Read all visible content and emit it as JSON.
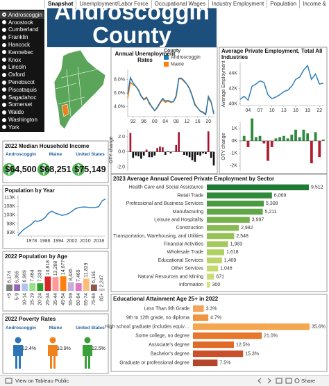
{
  "tabs": [
    "Snapshot",
    "Unemployment/Labor Force",
    "Occupational Wages",
    "Industry Employment",
    "Population",
    "Income &"
  ],
  "counties": [
    "Androscoggin",
    "Aroostook",
    "Cumberland",
    "Franklin",
    "Hancock",
    "Kennebec",
    "Knox",
    "Lincoln",
    "Oxford",
    "Penobscot",
    "Piscataquis",
    "Sagadahoc",
    "Somerset",
    "Waldo",
    "Washington",
    "York"
  ],
  "selected_county": 0,
  "banner_title": "Androscoggin County",
  "income": {
    "title": "2022 Median Household Income",
    "items": [
      {
        "name": "Androscoggin",
        "value": "$64,500"
      },
      {
        "name": "Maine",
        "value": "$68,251"
      },
      {
        "name": "United States",
        "value": "$75,149"
      }
    ]
  },
  "poverty": {
    "title": "2022 Poverty Rates",
    "items": [
      {
        "name": "Androscoggin",
        "value": "12.4%",
        "color": "#2e75b6"
      },
      {
        "name": "Maine",
        "value": "10.9%",
        "color": "#f0821e"
      },
      {
        "name": "United States",
        "value": "12.5%",
        "color": "#3aa03a"
      }
    ]
  },
  "footer": {
    "link": "View on Tableau Public",
    "share": "Share"
  },
  "chart_data": [
    {
      "type": "line",
      "title": "Annual Unemployment Rates",
      "legend_title": "County",
      "x": [
        1990,
        1991,
        1992,
        1993,
        1994,
        1995,
        1996,
        1997,
        1998,
        1999,
        2000,
        2001,
        2002,
        2003,
        2004,
        2005,
        2006,
        2007,
        2008,
        2009,
        2010,
        2011,
        2012,
        2013,
        2014,
        2015,
        2016,
        2017,
        2018,
        2019,
        2020,
        2021,
        2022
      ],
      "series": [
        {
          "name": "Androscoggin",
          "color": "#1f77b4",
          "values": [
            5.8,
            8.3,
            7.5,
            7.0,
            6.4,
            5.5,
            5.0,
            5.3,
            4.6,
            3.9,
            3.4,
            3.9,
            4.6,
            5.2,
            4.8,
            4.9,
            4.7,
            4.7,
            5.6,
            8.2,
            8.2,
            7.8,
            7.3,
            6.6,
            5.5,
            4.2,
            3.8,
            3.3,
            3.1,
            2.8,
            5.5,
            4.7,
            2.9
          ]
        },
        {
          "name": "Maine",
          "color": "#ff7f0e",
          "values": [
            5.2,
            7.6,
            7.2,
            7.0,
            6.5,
            5.6,
            5.1,
            5.4,
            4.4,
            4.0,
            3.4,
            3.8,
            4.5,
            5.0,
            4.6,
            4.8,
            4.6,
            4.7,
            5.4,
            8.1,
            8.1,
            7.7,
            7.3,
            6.7,
            5.6,
            4.4,
            3.8,
            3.3,
            3.2,
            2.9,
            5.2,
            4.6,
            3.1
          ]
        }
      ],
      "xlim": [
        1990,
        2022
      ],
      "xticks": [
        {
          "value": 1992,
          "label": "92"
        },
        {
          "value": 1996,
          "label": "96"
        },
        {
          "value": 2000,
          "label": "00"
        },
        {
          "value": 2004,
          "label": "04"
        },
        {
          "value": 2008,
          "label": "08"
        },
        {
          "value": 2012,
          "label": "12"
        },
        {
          "value": 2016,
          "label": "16"
        },
        {
          "value": 2020,
          "label": "20"
        }
      ],
      "ylim": [
        2.5,
        9.5
      ],
      "yticks": [
        {
          "value": 4,
          "label": "4.0%"
        },
        {
          "value": 6,
          "label": "6.0%"
        },
        {
          "value": 8,
          "label": "8.0%"
        }
      ],
      "grid": false
    },
    {
      "type": "bar",
      "ylabel": "OTY change",
      "x": [
        1991,
        1992,
        1993,
        1994,
        1995,
        1996,
        1997,
        1998,
        1999,
        2000,
        2001,
        2002,
        2003,
        2004,
        2005,
        2006,
        2007,
        2008,
        2009,
        2010,
        2011,
        2012,
        2013,
        2014,
        2015,
        2016,
        2017,
        2018,
        2019,
        2020,
        2021,
        2022
      ],
      "values": [
        2.5,
        -0.8,
        -0.5,
        -0.6,
        -0.9,
        -0.5,
        0.3,
        -0.7,
        -0.7,
        -0.5,
        0.5,
        0.7,
        0.6,
        -0.4,
        0.1,
        -0.2,
        0.0,
        0.9,
        2.6,
        0.0,
        -0.4,
        -0.5,
        -0.7,
        -1.1,
        -1.3,
        -0.4,
        -0.5,
        -0.2,
        -0.3,
        2.7,
        -0.8,
        -1.8
      ],
      "positive_color": "#a8102e",
      "negative_color": "#111111",
      "xlim": [
        1990,
        2022
      ],
      "ylim": [
        -2.5,
        3.0
      ],
      "yticks": [
        {
          "value": -2,
          "label": "-2.0"
        },
        {
          "value": 0,
          "label": "0.0"
        },
        {
          "value": 2,
          "label": "2.0"
        }
      ],
      "grid": false
    },
    {
      "type": "line",
      "title": "Average Private Employment, Total All Industries",
      "ylabel": "Average Employment",
      "color": "#2e7dbf",
      "x": [
        2002,
        2003,
        2004,
        2005,
        2006,
        2007,
        2008,
        2009,
        2010,
        2011,
        2012,
        2013,
        2014,
        2015,
        2016,
        2017,
        2018,
        2019,
        2020,
        2021,
        2022,
        2023
      ],
      "values": [
        40600,
        41000,
        40500,
        42300,
        42600,
        43000,
        42800,
        41200,
        40700,
        40900,
        41200,
        41600,
        41800,
        42300,
        43200,
        43500,
        44400,
        45000,
        43200,
        43900,
        42600,
        42700
      ],
      "xlim": [
        2002,
        2023
      ],
      "xticks": [
        {
          "value": 2004,
          "label": "04"
        },
        {
          "value": 2007,
          "label": "07"
        },
        {
          "value": 2010,
          "label": "10"
        },
        {
          "value": 2013,
          "label": "13"
        },
        {
          "value": 2016,
          "label": "16"
        },
        {
          "value": 2019,
          "label": "19"
        },
        {
          "value": 2022,
          "label": "22"
        }
      ],
      "ylim": [
        39800,
        45400
      ],
      "yticks": [
        {
          "value": 40000,
          "label": "40K"
        },
        {
          "value": 42000,
          "label": "42K"
        },
        {
          "value": 44000,
          "label": "44K"
        }
      ],
      "grid": false
    },
    {
      "type": "bar",
      "ylabel": "OTY change",
      "x": [
        2003,
        2004,
        2005,
        2006,
        2007,
        2008,
        2009,
        2010,
        2011,
        2012,
        2013,
        2014,
        2015,
        2016,
        2017,
        2018,
        2019,
        2020,
        2021,
        2022,
        2023
      ],
      "values": [
        400,
        -500,
        1800,
        300,
        400,
        -200,
        -1600,
        -500,
        200,
        300,
        400,
        200,
        500,
        900,
        300,
        900,
        600,
        -1800,
        700,
        -1300,
        100
      ],
      "positive_color": "#2e8b3d",
      "negative_color": "#b01e2e",
      "xlim": [
        2002,
        2023
      ],
      "ylim": [
        -2400,
        1500
      ],
      "yticks": [
        {
          "value": 1000,
          "label": "1K"
        },
        {
          "value": 0,
          "label": "0K"
        },
        {
          "value": -1000,
          "label": "-1K"
        },
        {
          "value": -2000,
          "label": "-2K"
        }
      ],
      "grid": false
    },
    {
      "type": "line",
      "title": "Population by Year",
      "color": "#2e7dbf",
      "x": [
        1970,
        1972,
        1974,
        1976,
        1978,
        1980,
        1982,
        1984,
        1986,
        1988,
        1990,
        1992,
        1994,
        1996,
        1998,
        2000,
        2002,
        2004,
        2006,
        2008,
        2010,
        2012,
        2014,
        2016,
        2018,
        2020,
        2022
      ],
      "values": [
        91300,
        93500,
        95200,
        96500,
        97800,
        99700,
        99500,
        100200,
        101500,
        104000,
        105300,
        104200,
        103600,
        102900,
        103200,
        103900,
        105200,
        106600,
        107300,
        107600,
        107700,
        107400,
        107300,
        107400,
        107900,
        111200,
        112300
      ],
      "xlim": [
        1970,
        2022
      ],
      "xticks": [
        1978,
        1986,
        1994,
        2002,
        2010,
        2018
      ],
      "ylim": [
        91000,
        114500
      ],
      "yticks": [
        {
          "value": 93000,
          "label": "93K"
        },
        {
          "value": 98000,
          "label": "98K"
        },
        {
          "value": 103000,
          "label": "103K"
        },
        {
          "value": 108000,
          "label": "108K"
        },
        {
          "value": 113000,
          "label": "113K"
        }
      ],
      "grid": false
    },
    {
      "type": "bar",
      "title": "2022 Population by Age",
      "categories": [
        "<5",
        "5-9",
        "10-14",
        "15-19",
        "20-24",
        "25-34",
        "35-44",
        "45-54",
        "55-59",
        "60-64",
        "65-74",
        "75-84",
        "85+"
      ],
      "values": [
        6174,
        6355,
        6969,
        7464,
        7330,
        13818,
        13268,
        14077,
        8435,
        7465,
        11829,
        6191,
        2247
      ],
      "value_labels": [
        "6,174",
        "6,355",
        "6,969",
        "7,464",
        "7,330",
        "13,818",
        "13,268",
        "14,077",
        "8,435",
        "7,465",
        "11,829",
        "6,191",
        "2,247"
      ],
      "colors": [
        "#7f7f7f",
        "#9467bd",
        "#aec7e8",
        "#98df8a",
        "#2ca02c",
        "#d62728",
        "#ff9896",
        "#ff7f0e",
        "#c5b0d5",
        "#e377c2",
        "#ffbb78",
        "#8c564b",
        "#c7c7c7"
      ]
    },
    {
      "type": "barh",
      "title": "2023 Average Annual Covered Private Employment by Sector",
      "categories": [
        "Health Care and Social Assistance",
        "Retail Trade",
        "Professional and Business Services",
        "Manufacturing",
        "Leisure and Hospitality",
        "Construction",
        "Transportation, Warehousing, and Utilities",
        "Financial Activities",
        "Wholesale Trade",
        "Educational Services",
        "Other Services",
        "Natural Resources and Mining",
        "Information"
      ],
      "values": [
        9512,
        6069,
        5308,
        5211,
        3997,
        2982,
        2548,
        1983,
        1618,
        1409,
        1046,
        671,
        300
      ],
      "value_labels": [
        "9,512",
        "6,069",
        "5,308",
        "5,211",
        "3,997",
        "2,982",
        "2,548",
        "1,983",
        "1,618",
        "1,409",
        "1,046",
        "671",
        "300"
      ],
      "colors": [
        "#1f7a35",
        "#2f8a3a",
        "#4a9a40",
        "#5ea646",
        "#74b04c",
        "#86ba52",
        "#96c257",
        "#a4c95c",
        "#b0cf62",
        "#bad468",
        "#c4d96e",
        "#cddd75",
        "#d5e17d"
      ]
    },
    {
      "type": "barh",
      "title": "Educational Attainment Age 25+ in 2022",
      "categories": [
        "Less Than 9th Grade",
        "9th to 12th grade, no diploma",
        "High school graduate (includes equiv…",
        "Some college, no degree",
        "Associate's degree",
        "Bachelor's degree",
        "Graduate or professional degree"
      ],
      "values": [
        3.3,
        4.7,
        35.6,
        21.0,
        12.5,
        15.3,
        7.5
      ],
      "value_labels": [
        "3.3%",
        "4.7%",
        "35.6%",
        "21.0%",
        "12.5%",
        "15.3%",
        "7.5%"
      ],
      "colors": [
        "#f3a35a",
        "#ef9540",
        "#f5a650",
        "#e8772e",
        "#e06a28",
        "#c9502a",
        "#b5452a"
      ]
    }
  ]
}
